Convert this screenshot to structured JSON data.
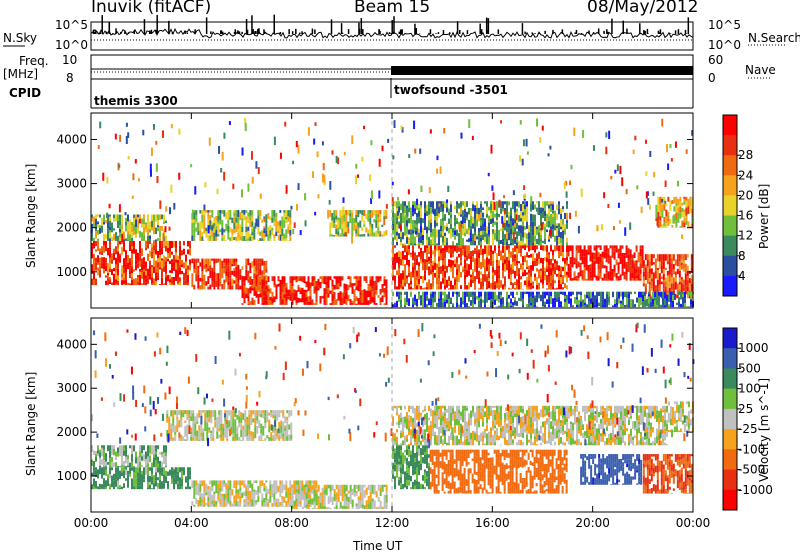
{
  "header": {
    "site": "Inuvik (fitACF)",
    "beam": "Beam 15",
    "date": "08/May/2012"
  },
  "side_labels": {
    "nsky": "N.Sky",
    "freq_line1": "Freq.",
    "freq_line2": "[MHz]",
    "cpid": "CPID",
    "nsearch": "N.Search",
    "nave": "Nave"
  },
  "noise_axis": {
    "left_top": "10^5",
    "left_bottom": "10^0",
    "right_top": "10^5",
    "right_bottom": "10^0"
  },
  "freq_axis": {
    "left_top": "10",
    "left_bottom": "8",
    "right_top": "60",
    "right_bottom": "0"
  },
  "cpid_labels": [
    {
      "name": "themis 3300",
      "start_hour": 0
    },
    {
      "name": "twofsound -3501",
      "start_hour": 12
    }
  ],
  "x_axis": {
    "label": "Time UT",
    "ticks": [
      "00:00",
      "04:00",
      "08:00",
      "12:00",
      "16:00",
      "20:00",
      "00:00"
    ],
    "range_hours": [
      0,
      24
    ]
  },
  "y_axis": {
    "label": "Slant Range [km]",
    "ticks": [
      "1000",
      "2000",
      "3000",
      "4000"
    ],
    "range_km": [
      180,
      4600
    ]
  },
  "colors": {
    "power": [
      "#1a1aff",
      "#2b4fa0",
      "#3a8a5e",
      "#6fbf3c",
      "#e9d22a",
      "#f5a21d",
      "#f06a10",
      "#e83010",
      "#ff0000"
    ],
    "velocity": [
      "#1a1acc",
      "#3a5fb0",
      "#3a8a5e",
      "#6fbf3c",
      "#c0c0c0",
      "#f5a21d",
      "#f06a10",
      "#e83010",
      "#ff0000"
    ],
    "ground_scatter": "#c0c0c0"
  },
  "chart_data": [
    {
      "type": "heatmap",
      "name": "power",
      "colorbar_label": "Power [dB]",
      "colorbar_ticks": [
        "4",
        "8",
        "12",
        "16",
        "20",
        "24",
        "28"
      ],
      "value_range": [
        0,
        30
      ],
      "x_unit": "hours UT",
      "y_unit": "km",
      "regions": [
        {
          "t0": 0.0,
          "t1": 4.0,
          "r0": 700,
          "r1": 1700,
          "v": 25
        },
        {
          "t0": 0.0,
          "t1": 3.0,
          "r0": 1700,
          "r1": 2300,
          "v": 12
        },
        {
          "t0": 4.0,
          "t1": 7.0,
          "r0": 600,
          "r1": 1300,
          "v": 26
        },
        {
          "t0": 6.0,
          "t1": 11.8,
          "r0": 250,
          "r1": 900,
          "v": 27
        },
        {
          "t0": 4.0,
          "t1": 8.0,
          "r0": 1700,
          "r1": 2400,
          "v": 13
        },
        {
          "t0": 9.5,
          "t1": 11.8,
          "r0": 1800,
          "r1": 2400,
          "v": 14
        },
        {
          "t0": 12.0,
          "t1": 19.0,
          "r0": 1600,
          "r1": 2600,
          "v": 10
        },
        {
          "t0": 12.0,
          "t1": 19.0,
          "r0": 600,
          "r1": 1600,
          "v": 25
        },
        {
          "t0": 19.0,
          "t1": 22.0,
          "r0": 800,
          "r1": 1600,
          "v": 28
        },
        {
          "t0": 22.0,
          "t1": 24.0,
          "r0": 400,
          "r1": 1400,
          "v": 24
        },
        {
          "t0": 22.5,
          "t1": 24.0,
          "r0": 2000,
          "r1": 2700,
          "v": 18
        },
        {
          "t0": 12.0,
          "t1": 24.0,
          "r0": 200,
          "r1": 550,
          "v": 6
        }
      ]
    },
    {
      "type": "heatmap",
      "name": "velocity",
      "colorbar_label": "Velocity [m s^-1]",
      "colorbar_ticks": [
        "1000",
        "500",
        "100",
        "25",
        "-25",
        "-100",
        "-500",
        "-1000"
      ],
      "value_range": [
        -1000,
        1000
      ],
      "x_unit": "hours UT",
      "y_unit": "km",
      "regions": [
        {
          "t0": 0.0,
          "t1": 4.0,
          "r0": 700,
          "r1": 1200,
          "v": 80
        },
        {
          "t0": 0.0,
          "t1": 3.0,
          "r0": 1200,
          "r1": 1700,
          "v": 50
        },
        {
          "t0": 3.0,
          "t1": 8.0,
          "r0": 1800,
          "r1": 2500,
          "v": 0
        },
        {
          "t0": 4.0,
          "t1": 9.0,
          "r0": 300,
          "r1": 900,
          "v": 0
        },
        {
          "t0": 8.0,
          "t1": 11.8,
          "r0": 250,
          "r1": 800,
          "v": 0
        },
        {
          "t0": 12.0,
          "t1": 13.5,
          "r0": 700,
          "r1": 1700,
          "v": 80
        },
        {
          "t0": 13.5,
          "t1": 19.0,
          "r0": 600,
          "r1": 1600,
          "v": -300
        },
        {
          "t0": 12.0,
          "t1": 23.0,
          "r0": 1700,
          "r1": 2600,
          "v": 0
        },
        {
          "t0": 19.5,
          "t1": 22.0,
          "r0": 800,
          "r1": 1500,
          "v": 700
        },
        {
          "t0": 22.0,
          "t1": 24.0,
          "r0": 600,
          "r1": 1500,
          "v": -500
        },
        {
          "t0": 23.0,
          "t1": 24.0,
          "r0": 2000,
          "r1": 2700,
          "v": 0
        }
      ]
    }
  ]
}
